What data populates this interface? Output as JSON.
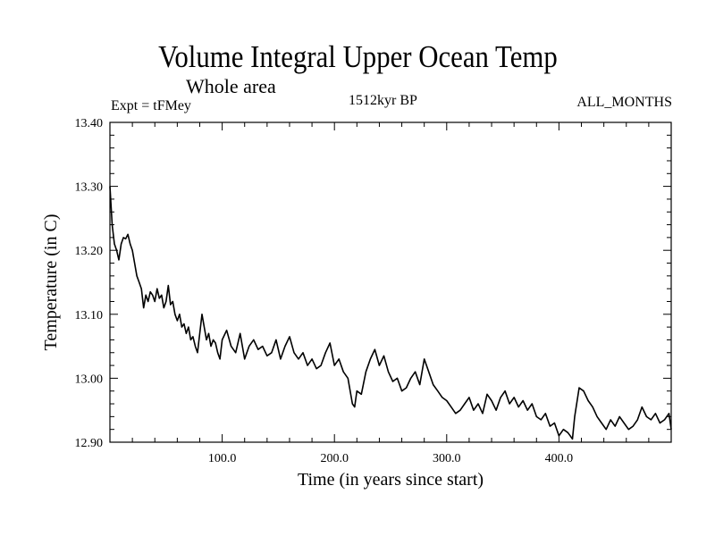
{
  "chart_data": {
    "type": "line",
    "title": "Volume Integral Upper Ocean Temp",
    "subtitle": "Whole area",
    "expt_label": "Expt = tFMey",
    "period_label": "1512kyr BP",
    "months_label": "ALL_MONTHS",
    "xlabel": "Time (in years since start)",
    "ylabel": "Temperature (in C)",
    "xlim": [
      0,
      500
    ],
    "ylim": [
      12.9,
      13.4
    ],
    "xticks": [
      100,
      200,
      300,
      400
    ],
    "xtick_labels": [
      "100.0",
      "200.0",
      "300.0",
      "400.0"
    ],
    "yticks": [
      12.9,
      13.0,
      13.1,
      13.2,
      13.3,
      13.4
    ],
    "ytick_labels": [
      "12.90",
      "13.00",
      "13.10",
      "13.20",
      "13.30",
      "13.40"
    ],
    "series": [
      {
        "name": "Temperature",
        "x": [
          0,
          2,
          4,
          6,
          8,
          10,
          12,
          14,
          16,
          18,
          20,
          22,
          24,
          26,
          28,
          30,
          32,
          34,
          36,
          38,
          40,
          42,
          44,
          46,
          48,
          50,
          52,
          54,
          56,
          58,
          60,
          62,
          64,
          66,
          68,
          70,
          72,
          74,
          76,
          78,
          80,
          82,
          84,
          86,
          88,
          90,
          92,
          94,
          96,
          98,
          100,
          104,
          108,
          112,
          116,
          120,
          124,
          128,
          132,
          136,
          140,
          144,
          148,
          152,
          156,
          160,
          164,
          168,
          172,
          176,
          180,
          184,
          188,
          192,
          196,
          200,
          204,
          208,
          212,
          214,
          216,
          218,
          220,
          224,
          228,
          232,
          236,
          240,
          244,
          248,
          252,
          256,
          260,
          264,
          268,
          272,
          276,
          280,
          284,
          288,
          292,
          296,
          300,
          304,
          308,
          312,
          316,
          320,
          324,
          328,
          332,
          336,
          340,
          344,
          348,
          352,
          356,
          360,
          364,
          368,
          372,
          376,
          380,
          384,
          388,
          392,
          396,
          400,
          404,
          408,
          410,
          412,
          414,
          418,
          422,
          426,
          430,
          434,
          438,
          442,
          446,
          450,
          454,
          458,
          462,
          466,
          470,
          474,
          478,
          482,
          486,
          490,
          494,
          498,
          500
        ],
        "values": [
          13.3,
          13.24,
          13.21,
          13.2,
          13.185,
          13.21,
          13.22,
          13.218,
          13.225,
          13.21,
          13.2,
          13.18,
          13.16,
          13.15,
          13.14,
          13.11,
          13.13,
          13.12,
          13.135,
          13.13,
          13.12,
          13.14,
          13.125,
          13.13,
          13.11,
          13.12,
          13.145,
          13.115,
          13.12,
          13.1,
          13.09,
          13.1,
          13.08,
          13.085,
          13.07,
          13.08,
          13.06,
          13.065,
          13.05,
          13.04,
          13.07,
          13.1,
          13.08,
          13.06,
          13.07,
          13.05,
          13.06,
          13.055,
          13.04,
          13.03,
          13.06,
          13.075,
          13.05,
          13.04,
          13.07,
          13.03,
          13.05,
          13.06,
          13.045,
          13.05,
          13.035,
          13.04,
          13.06,
          13.03,
          13.05,
          13.065,
          13.04,
          13.03,
          13.04,
          13.02,
          13.03,
          13.015,
          13.02,
          13.04,
          13.055,
          13.02,
          13.03,
          13.01,
          13.0,
          12.98,
          12.96,
          12.955,
          12.98,
          12.975,
          13.01,
          13.03,
          13.045,
          13.02,
          13.035,
          13.01,
          12.995,
          13.0,
          12.98,
          12.985,
          13.0,
          13.01,
          12.99,
          13.03,
          13.01,
          12.99,
          12.98,
          12.97,
          12.965,
          12.955,
          12.945,
          12.95,
          12.96,
          12.97,
          12.95,
          12.96,
          12.945,
          12.975,
          12.965,
          12.95,
          12.97,
          12.98,
          12.96,
          12.97,
          12.955,
          12.965,
          12.95,
          12.96,
          12.94,
          12.935,
          12.945,
          12.925,
          12.93,
          12.91,
          12.92,
          12.915,
          12.91,
          12.905,
          12.94,
          12.985,
          12.98,
          12.965,
          12.955,
          12.94,
          12.93,
          12.92,
          12.935,
          12.925,
          12.94,
          12.93,
          12.92,
          12.925,
          12.935,
          12.955,
          12.94,
          12.935,
          12.945,
          12.93,
          12.935,
          12.945,
          12.92
        ]
      }
    ]
  }
}
